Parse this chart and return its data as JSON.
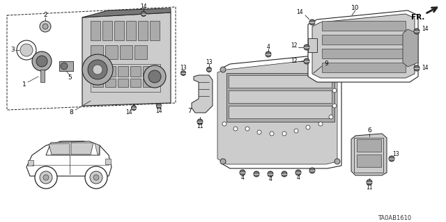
{
  "background_color": "#ffffff",
  "diagram_id": "TA0AB1610",
  "fig_width": 6.4,
  "fig_height": 3.19,
  "dpi": 100,
  "line_color": "#222222",
  "gray_light": "#cccccc",
  "gray_mid": "#aaaaaa",
  "gray_dark": "#777777"
}
